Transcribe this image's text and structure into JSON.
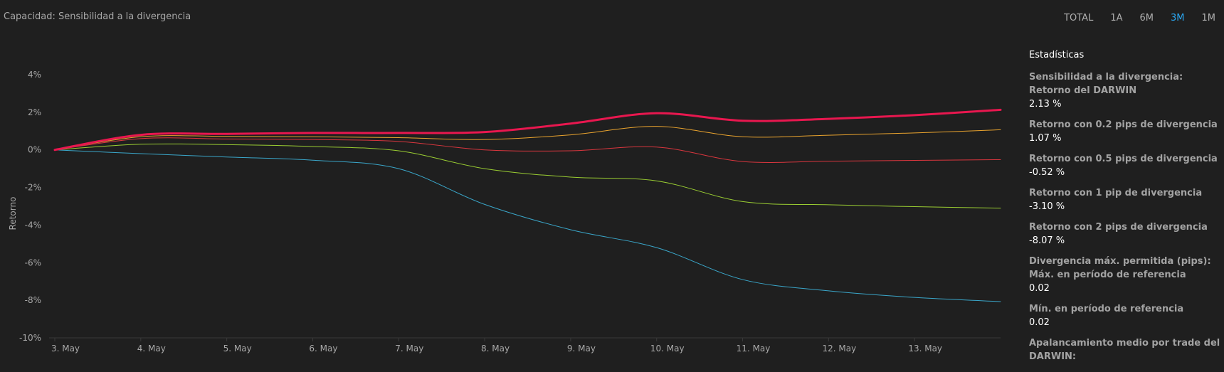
{
  "header": {
    "title": "Capacidad: Sensibilidad a la divergencia",
    "ranges": [
      "TOTAL",
      "1A",
      "6M",
      "3M",
      "1M"
    ],
    "active_range": "3M"
  },
  "chart_data": {
    "type": "line",
    "ylabel": "Retorno",
    "xlabel": "",
    "x_ticks": [
      "3. May",
      "4. May",
      "5. May",
      "6. May",
      "7. May",
      "8. May",
      "9. May",
      "10. May",
      "11. May",
      "12. May",
      "13. May"
    ],
    "y_ticks": [
      "4%",
      "2%",
      "0%",
      "-2%",
      "-4%",
      "-6%",
      "-8%",
      "-10%"
    ],
    "ylim": [
      -10,
      4
    ],
    "xlim": [
      0,
      11.0
    ],
    "series": [
      {
        "color": "#e8174f",
        "width": 3,
        "x": [
          0,
          1,
          2,
          3,
          4,
          5,
          6,
          7,
          8,
          9,
          10,
          11
        ],
        "y": [
          0,
          0.8,
          0.85,
          0.9,
          0.9,
          0.95,
          1.4,
          1.95,
          1.55,
          1.65,
          1.85,
          2.13
        ]
      },
      {
        "color": "#e9a32e",
        "width": 1,
        "x": [
          0,
          1,
          2,
          3,
          4,
          5,
          6,
          7,
          8,
          9,
          10,
          11
        ],
        "y": [
          0,
          0.7,
          0.72,
          0.7,
          0.65,
          0.55,
          0.8,
          1.25,
          0.7,
          0.78,
          0.9,
          1.07
        ]
      },
      {
        "color": "#d9363e",
        "width": 1,
        "x": [
          0,
          1,
          2,
          3,
          4,
          5,
          6,
          7,
          8,
          9,
          10,
          11
        ],
        "y": [
          0,
          0.6,
          0.58,
          0.55,
          0.45,
          0.0,
          -0.05,
          0.15,
          -0.62,
          -0.6,
          -0.56,
          -0.52
        ]
      },
      {
        "color": "#9acd32",
        "width": 1,
        "x": [
          0,
          1,
          2,
          3,
          4,
          5,
          6,
          7,
          8,
          9,
          10,
          11
        ],
        "y": [
          0,
          0.3,
          0.28,
          0.18,
          -0.05,
          -1.0,
          -1.45,
          -1.65,
          -2.75,
          -2.92,
          -3.02,
          -3.1
        ]
      },
      {
        "color": "#3aa6c9",
        "width": 1,
        "x": [
          0,
          1,
          2,
          3,
          4,
          5,
          6,
          7,
          8,
          9,
          10,
          11
        ],
        "y": [
          0,
          -0.2,
          -0.38,
          -0.55,
          -1.0,
          -2.9,
          -4.25,
          -5.2,
          -6.9,
          -7.5,
          -7.85,
          -8.07
        ]
      }
    ],
    "grid": false
  },
  "stats": {
    "heading": "Estadísticas",
    "items": [
      {
        "label": "Sensibilidad a la divergencia: Retorno del DARWIN",
        "value": "2.13 %"
      },
      {
        "label": "Retorno con 0.2 pips de divergencia",
        "value": "1.07 %"
      },
      {
        "label": "Retorno con 0.5 pips de divergencia",
        "value": "-0.52 %"
      },
      {
        "label": "Retorno con 1 pip de divergencia",
        "value": "-3.10 %"
      },
      {
        "label": "Retorno con 2 pips de divergencia",
        "value": "-8.07 %"
      },
      {
        "label": "Divergencia máx. permitida (pips): Máx. en período de referencia",
        "value": "0.02"
      },
      {
        "label": "Mín. en período de referencia",
        "value": "0.02"
      },
      {
        "label": "Apalancamiento medio por trade del DARWIN:",
        "value": ""
      }
    ]
  }
}
